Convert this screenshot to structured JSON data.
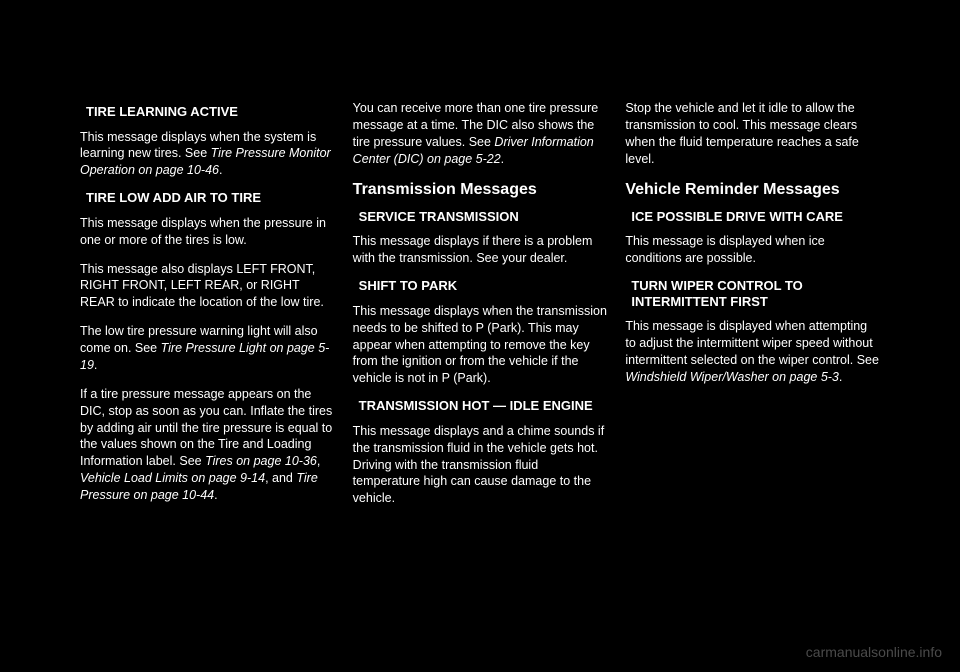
{
  "col1": {
    "h1": "TIRE LEARNING ACTIVE",
    "p1a": "This message displays when the system is learning new tires. See ",
    "p1b": "Tire Pressure Monitor Operation on page 10-46",
    "p1c": ".",
    "h2": "TIRE LOW ADD AIR TO TIRE",
    "p2": "This message displays when the pressure in one or more of the tires is low.",
    "p3": "This message also displays LEFT FRONT, RIGHT FRONT, LEFT REAR, or RIGHT REAR to indicate the location of the low tire.",
    "p4a": "The low tire pressure warning light will also come on. See ",
    "p4b": "Tire Pressure Light on page 5-19",
    "p4c": ".",
    "p5a": "If a tire pressure message appears on the DIC, stop as soon as you can. Inflate the tires by adding air until the tire pressure is equal to the values shown on the Tire and Loading Information label. See ",
    "p5b": "Tires on page 10-36",
    "p5c": ", ",
    "p5d": "Vehicle Load Limits on page 9-14",
    "p5e": ", and ",
    "p5f": "Tire Pressure on page 10-44",
    "p5g": "."
  },
  "col2": {
    "p1a": "You can receive more than one tire pressure message at a time. The DIC also shows the tire pressure values. See ",
    "p1b": "Driver Information Center (DIC) on page 5-22",
    "p1c": ".",
    "title1": "Transmission Messages",
    "h1": "SERVICE TRANSMISSION",
    "p2": "This message displays if there is a problem with the transmission. See your dealer.",
    "h2": "SHIFT TO PARK",
    "p3": "This message displays when the transmission needs to be shifted to P (Park). This may appear when attempting to remove the key from the ignition or from the vehicle if the vehicle is not in P (Park).",
    "h3": "TRANSMISSION HOT — IDLE ENGINE",
    "p4": "This message displays and a chime sounds if the transmission fluid in the vehicle gets hot. Driving with the transmission fluid temperature high can cause damage to the vehicle."
  },
  "col3": {
    "p1": "Stop the vehicle and let it idle to allow the transmission to cool. This message clears when the fluid temperature reaches a safe level.",
    "title1": "Vehicle Reminder Messages",
    "h1": "ICE POSSIBLE DRIVE WITH CARE",
    "p2": "This message is displayed when ice conditions are possible.",
    "h2": "TURN WIPER CONTROL TO INTERMITTENT FIRST",
    "p3a": "This message is displayed when attempting to adjust the intermittent wiper speed without intermittent selected on the wiper control. See ",
    "p3b": "Windshield Wiper/Washer on page 5-3",
    "p3c": "."
  },
  "watermark": "carmanualsonline.info"
}
